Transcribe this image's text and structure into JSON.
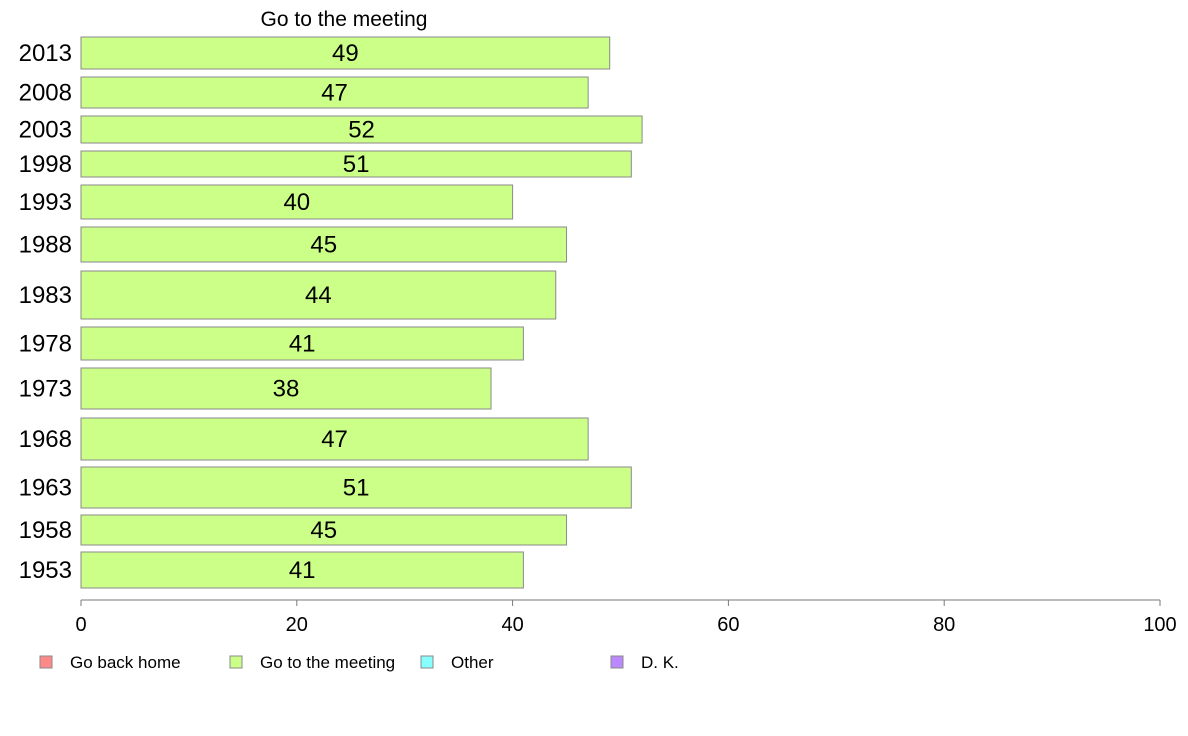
{
  "chart_data": {
    "type": "bar",
    "orientation": "horizontal",
    "title": "Go to the meeting",
    "categories": [
      "2013",
      "2008",
      "2003",
      "1998",
      "1993",
      "1988",
      "1983",
      "1978",
      "1973",
      "1968",
      "1963",
      "1958",
      "1953"
    ],
    "series": [
      {
        "name": "Go to the meeting",
        "color": "#ccff88",
        "values": [
          49,
          47,
          52,
          51,
          40,
          45,
          44,
          41,
          38,
          47,
          51,
          45,
          41
        ]
      }
    ],
    "xlim": [
      0,
      100
    ],
    "xticks": [
      0,
      20,
      40,
      60,
      80,
      100
    ],
    "legend_position": "bottom",
    "legend": [
      {
        "label": "Go back home",
        "color": "#ff8888"
      },
      {
        "label": "Go to the meeting",
        "color": "#ccff88"
      },
      {
        "label": "Other",
        "color": "#88ffff"
      },
      {
        "label": "D. K.",
        "color": "#bb88ff"
      }
    ]
  }
}
